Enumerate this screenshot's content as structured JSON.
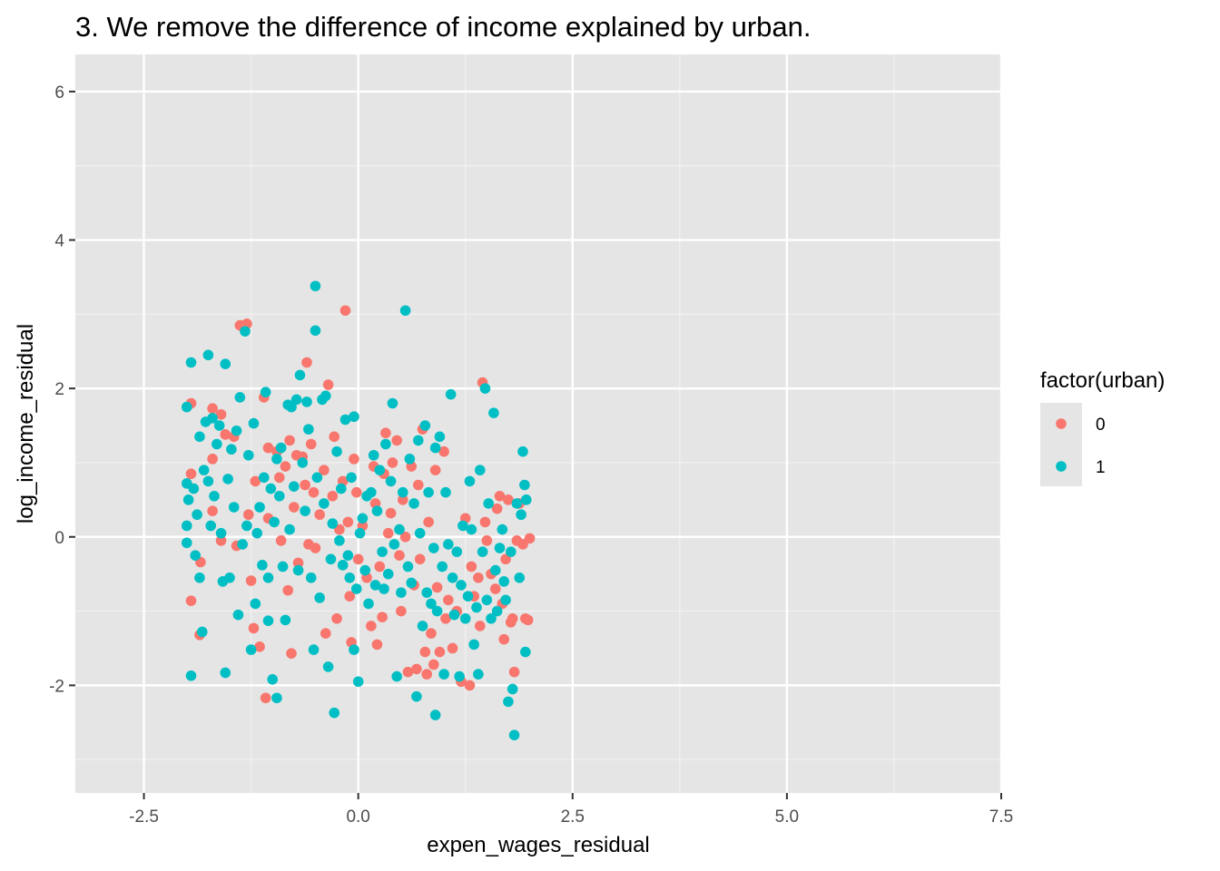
{
  "chart_data": {
    "type": "scatter",
    "title": "3. We remove the difference of income explained by urban.",
    "xlabel": "expen_wages_residual",
    "ylabel": "log_income_residual",
    "xlim": [
      -3.3,
      7.5
    ],
    "ylim": [
      -3.45,
      6.5
    ],
    "x_ticks": [
      -2.5,
      0.0,
      2.5,
      5.0,
      7.5
    ],
    "x_tick_labels": [
      "-2.5",
      "0.0",
      "2.5",
      "5.0",
      "7.5"
    ],
    "y_ticks": [
      -2,
      0,
      2,
      4,
      6
    ],
    "y_tick_labels": [
      "-2",
      "0",
      "2",
      "4",
      "6"
    ],
    "grid": true,
    "panel_background": "#e5e5e5",
    "legend": {
      "title": "factor(urban)",
      "placement": "right",
      "entries": [
        {
          "label": "0",
          "color": "#f8766d"
        },
        {
          "label": "1",
          "color": "#00bfc4"
        }
      ]
    },
    "series": [
      {
        "name": "0",
        "color": "#f8766d",
        "points": [
          [
            -1.95,
            1.8
          ],
          [
            -1.95,
            0.85
          ],
          [
            -1.95,
            -0.86
          ],
          [
            -1.85,
            -1.32
          ],
          [
            -1.84,
            -0.34
          ],
          [
            -1.7,
            1.73
          ],
          [
            -1.7,
            1.05
          ],
          [
            -1.7,
            0.35
          ],
          [
            -1.6,
            1.65
          ],
          [
            -1.6,
            -0.05
          ],
          [
            -1.55,
            1.38
          ],
          [
            -1.45,
            1.35
          ],
          [
            -1.42,
            -0.12
          ],
          [
            -1.38,
            2.85
          ],
          [
            -1.3,
            2.87
          ],
          [
            -1.28,
            0.3
          ],
          [
            -1.25,
            -0.59
          ],
          [
            -1.22,
            -1.23
          ],
          [
            -1.2,
            0.75
          ],
          [
            -1.15,
            -1.48
          ],
          [
            -1.1,
            1.88
          ],
          [
            -1.08,
            -2.17
          ],
          [
            -1.05,
            1.2
          ],
          [
            -1.05,
            0.25
          ],
          [
            -0.95,
            1.15
          ],
          [
            -0.92,
            0.8
          ],
          [
            -0.9,
            -0.05
          ],
          [
            -0.85,
            0.95
          ],
          [
            -0.82,
            -0.72
          ],
          [
            -0.8,
            1.3
          ],
          [
            -0.78,
            -1.57
          ],
          [
            -0.75,
            0.4
          ],
          [
            -0.72,
            1.1
          ],
          [
            -0.7,
            -0.35
          ],
          [
            -0.65,
            1.08
          ],
          [
            -0.62,
            0.7
          ],
          [
            -0.6,
            2.35
          ],
          [
            -0.58,
            -0.1
          ],
          [
            -0.55,
            1.25
          ],
          [
            -0.52,
            0.6
          ],
          [
            -0.5,
            -0.15
          ],
          [
            -0.45,
            0.3
          ],
          [
            -0.4,
            0.9
          ],
          [
            -0.38,
            -1.3
          ],
          [
            -0.35,
            2.05
          ],
          [
            -0.3,
            0.55
          ],
          [
            -0.28,
            1.35
          ],
          [
            -0.25,
            -1.1
          ],
          [
            -0.22,
            0.1
          ],
          [
            -0.18,
            0.75
          ],
          [
            -0.15,
            3.05
          ],
          [
            -0.12,
            0.2
          ],
          [
            -0.1,
            -0.8
          ],
          [
            -0.08,
            -1.42
          ],
          [
            -0.05,
            1.05
          ],
          [
            -0.02,
            0.6
          ],
          [
            0.0,
            -0.3
          ],
          [
            0.05,
            0.15
          ],
          [
            0.1,
            -0.55
          ],
          [
            0.15,
            -1.2
          ],
          [
            0.18,
            0.95
          ],
          [
            0.2,
            0.45
          ],
          [
            0.22,
            -1.45
          ],
          [
            0.25,
            -0.4
          ],
          [
            0.28,
            -1.08
          ],
          [
            0.3,
            0.85
          ],
          [
            0.32,
            1.4
          ],
          [
            0.35,
            0.05
          ],
          [
            0.38,
            0.32
          ],
          [
            0.4,
            1.0
          ],
          [
            0.45,
            1.3
          ],
          [
            0.48,
            -0.25
          ],
          [
            0.5,
            -1.0
          ],
          [
            0.52,
            0.5
          ],
          [
            0.55,
            0.0
          ],
          [
            0.58,
            -1.82
          ],
          [
            0.62,
            0.95
          ],
          [
            0.65,
            -0.65
          ],
          [
            0.68,
            -1.78
          ],
          [
            0.7,
            0.7
          ],
          [
            0.72,
            -0.3
          ],
          [
            0.75,
            1.45
          ],
          [
            0.78,
            -1.55
          ],
          [
            0.8,
            -1.85
          ],
          [
            0.82,
            0.2
          ],
          [
            0.85,
            -1.3
          ],
          [
            0.88,
            -1.72
          ],
          [
            0.9,
            0.9
          ],
          [
            0.92,
            -0.68
          ],
          [
            0.95,
            -1.55
          ],
          [
            1.0,
            1.15
          ],
          [
            1.02,
            -1.1
          ],
          [
            1.05,
            -0.85
          ],
          [
            1.1,
            -1.5
          ],
          [
            1.15,
            -1.0
          ],
          [
            1.2,
            -1.95
          ],
          [
            1.25,
            0.25
          ],
          [
            1.3,
            -2.0
          ],
          [
            1.32,
            -0.4
          ],
          [
            1.35,
            -0.8
          ],
          [
            1.4,
            -0.55
          ],
          [
            1.42,
            -1.2
          ],
          [
            1.45,
            2.08
          ],
          [
            1.48,
            0.2
          ],
          [
            1.5,
            -0.05
          ],
          [
            1.55,
            -0.5
          ],
          [
            1.6,
            -0.7
          ],
          [
            1.62,
            0.38
          ],
          [
            1.65,
            0.55
          ],
          [
            1.68,
            -0.9
          ],
          [
            1.7,
            -1.38
          ],
          [
            1.72,
            -0.3
          ],
          [
            1.75,
            0.5
          ],
          [
            1.78,
            -1.15
          ],
          [
            1.8,
            -1.1
          ],
          [
            1.82,
            -1.82
          ],
          [
            1.85,
            -0.05
          ],
          [
            1.88,
            0.45
          ],
          [
            1.92,
            -0.1
          ],
          [
            1.95,
            -1.1
          ],
          [
            1.98,
            -1.12
          ],
          [
            2.0,
            -0.02
          ]
        ]
      },
      {
        "name": "1",
        "color": "#00bfc4",
        "points": [
          [
            -2.0,
            1.75
          ],
          [
            -2.0,
            0.72
          ],
          [
            -2.0,
            0.15
          ],
          [
            -2.0,
            -0.08
          ],
          [
            -1.98,
            0.5
          ],
          [
            -1.95,
            2.35
          ],
          [
            -1.95,
            -1.87
          ],
          [
            -1.92,
            0.65
          ],
          [
            -1.9,
            -0.25
          ],
          [
            -1.88,
            0.3
          ],
          [
            -1.85,
            1.35
          ],
          [
            -1.85,
            -0.55
          ],
          [
            -1.82,
            -1.28
          ],
          [
            -1.8,
            0.9
          ],
          [
            -1.78,
            1.55
          ],
          [
            -1.75,
            2.45
          ],
          [
            -1.75,
            0.75
          ],
          [
            -1.72,
            0.15
          ],
          [
            -1.7,
            1.6
          ],
          [
            -1.68,
            0.55
          ],
          [
            -1.65,
            1.25
          ],
          [
            -1.62,
            1.5
          ],
          [
            -1.6,
            0.05
          ],
          [
            -1.58,
            -0.6
          ],
          [
            -1.55,
            2.33
          ],
          [
            -1.55,
            -1.83
          ],
          [
            -1.52,
            0.78
          ],
          [
            -1.5,
            -0.55
          ],
          [
            -1.48,
            1.18
          ],
          [
            -1.45,
            0.4
          ],
          [
            -1.42,
            1.43
          ],
          [
            -1.4,
            -1.05
          ],
          [
            -1.38,
            1.88
          ],
          [
            -1.35,
            -0.1
          ],
          [
            -1.32,
            2.77
          ],
          [
            -1.3,
            0.15
          ],
          [
            -1.28,
            1.1
          ],
          [
            -1.25,
            -1.52
          ],
          [
            -1.22,
            1.53
          ],
          [
            -1.2,
            -0.9
          ],
          [
            -1.18,
            0.05
          ],
          [
            -1.15,
            0.4
          ],
          [
            -1.12,
            -0.38
          ],
          [
            -1.1,
            0.8
          ],
          [
            -1.08,
            1.95
          ],
          [
            -1.05,
            -1.13
          ],
          [
            -1.05,
            -0.55
          ],
          [
            -1.02,
            0.65
          ],
          [
            -1.0,
            -1.92
          ],
          [
            -0.98,
            0.2
          ],
          [
            -0.95,
            -2.17
          ],
          [
            -0.95,
            1.05
          ],
          [
            -0.92,
            0.55
          ],
          [
            -0.9,
            1.2
          ],
          [
            -0.88,
            -0.4
          ],
          [
            -0.85,
            -1.12
          ],
          [
            -0.82,
            1.78
          ],
          [
            -0.8,
            0.1
          ],
          [
            -0.78,
            1.75
          ],
          [
            -0.75,
            0.68
          ],
          [
            -0.72,
            1.85
          ],
          [
            -0.7,
            -0.45
          ],
          [
            -0.68,
            2.18
          ],
          [
            -0.65,
            1.0
          ],
          [
            -0.62,
            0.35
          ],
          [
            -0.6,
            1.82
          ],
          [
            -0.58,
            1.45
          ],
          [
            -0.55,
            -0.55
          ],
          [
            -0.52,
            -1.52
          ],
          [
            -0.5,
            3.38
          ],
          [
            -0.5,
            2.78
          ],
          [
            -0.48,
            0.8
          ],
          [
            -0.45,
            -0.82
          ],
          [
            -0.42,
            1.85
          ],
          [
            -0.4,
            0.45
          ],
          [
            -0.38,
            1.9
          ],
          [
            -0.35,
            -1.75
          ],
          [
            -0.32,
            -0.3
          ],
          [
            -0.3,
            0.18
          ],
          [
            -0.28,
            -2.37
          ],
          [
            -0.25,
            1.15
          ],
          [
            -0.22,
            -0.05
          ],
          [
            -0.2,
            0.65
          ],
          [
            -0.18,
            -0.38
          ],
          [
            -0.15,
            1.58
          ],
          [
            -0.12,
            -0.25
          ],
          [
            -0.1,
            -0.55
          ],
          [
            -0.08,
            0.8
          ],
          [
            -0.05,
            1.62
          ],
          [
            -0.05,
            -1.52
          ],
          [
            -0.02,
            -0.7
          ],
          [
            0.0,
            -1.95
          ],
          [
            0.02,
            0.05
          ],
          [
            0.05,
            0.25
          ],
          [
            0.08,
            -0.45
          ],
          [
            0.1,
            0.55
          ],
          [
            0.12,
            -0.9
          ],
          [
            0.15,
            0.6
          ],
          [
            0.18,
            1.1
          ],
          [
            0.2,
            -0.65
          ],
          [
            0.22,
            0.35
          ],
          [
            0.25,
            0.9
          ],
          [
            0.28,
            -0.2
          ],
          [
            0.3,
            -0.7
          ],
          [
            0.32,
            1.25
          ],
          [
            0.35,
            -0.5
          ],
          [
            0.38,
            0.75
          ],
          [
            0.4,
            1.8
          ],
          [
            0.42,
            -0.1
          ],
          [
            0.45,
            -1.88
          ],
          [
            0.48,
            0.1
          ],
          [
            0.5,
            -0.75
          ],
          [
            0.52,
            0.6
          ],
          [
            0.55,
            3.05
          ],
          [
            0.58,
            -0.4
          ],
          [
            0.6,
            1.05
          ],
          [
            0.62,
            -0.62
          ],
          [
            0.65,
            0.45
          ],
          [
            0.68,
            -2.15
          ],
          [
            0.7,
            1.3
          ],
          [
            0.72,
            0.05
          ],
          [
            0.75,
            -1.2
          ],
          [
            0.78,
            1.5
          ],
          [
            0.8,
            -0.75
          ],
          [
            0.82,
            0.6
          ],
          [
            0.85,
            -0.9
          ],
          [
            0.88,
            -0.15
          ],
          [
            0.9,
            -2.4
          ],
          [
            0.9,
            1.2
          ],
          [
            0.92,
            -1.0
          ],
          [
            0.95,
            1.35
          ],
          [
            0.98,
            -0.4
          ],
          [
            1.0,
            -1.85
          ],
          [
            1.02,
            0.6
          ],
          [
            1.05,
            -0.1
          ],
          [
            1.08,
            1.92
          ],
          [
            1.1,
            -0.55
          ],
          [
            1.12,
            -1.05
          ],
          [
            1.15,
            -0.2
          ],
          [
            1.18,
            -1.88
          ],
          [
            1.2,
            -0.65
          ],
          [
            1.22,
            0.15
          ],
          [
            1.25,
            -1.1
          ],
          [
            1.28,
            -0.8
          ],
          [
            1.3,
            0.75
          ],
          [
            1.32,
            0.1
          ],
          [
            1.35,
            -1.45
          ],
          [
            1.38,
            -0.95
          ],
          [
            1.4,
            -1.85
          ],
          [
            1.42,
            0.9
          ],
          [
            1.45,
            -0.2
          ],
          [
            1.48,
            2.0
          ],
          [
            1.5,
            -0.85
          ],
          [
            1.52,
            0.45
          ],
          [
            1.55,
            -1.1
          ],
          [
            1.58,
            1.67
          ],
          [
            1.6,
            -0.45
          ],
          [
            1.62,
            -1.0
          ],
          [
            1.65,
            -0.15
          ],
          [
            1.68,
            0.1
          ],
          [
            1.7,
            -0.6
          ],
          [
            1.72,
            -0.85
          ],
          [
            1.75,
            -2.22
          ],
          [
            1.78,
            -0.2
          ],
          [
            1.8,
            -2.05
          ],
          [
            1.82,
            -2.67
          ],
          [
            1.85,
            0.45
          ],
          [
            1.88,
            -0.55
          ],
          [
            1.9,
            0.3
          ],
          [
            1.92,
            1.15
          ],
          [
            1.94,
            0.7
          ],
          [
            1.95,
            -1.55
          ],
          [
            1.96,
            0.5
          ]
        ]
      }
    ]
  }
}
